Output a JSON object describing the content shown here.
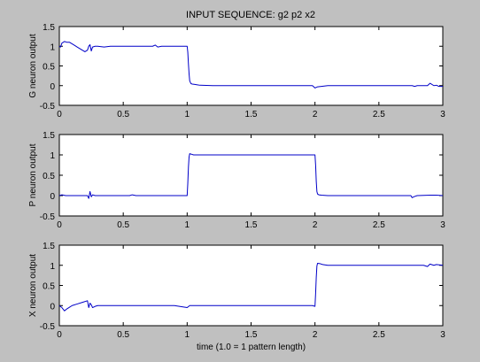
{
  "figure": {
    "title": "INPUT SEQUENCE: g2 p2 x2",
    "background": "#c0c0c0",
    "axes_background": "#ffffff",
    "line_color": "#0000c8"
  },
  "chart_data": [
    {
      "type": "line",
      "title": "INPUT SEQUENCE: g2 p2 x2",
      "xlabel": "",
      "ylabel": "G neuron output",
      "xlim": [
        0,
        3
      ],
      "ylim": [
        -0.5,
        1.5
      ],
      "xticks": [
        "0",
        "0.5",
        "1",
        "1.5",
        "2",
        "2.5",
        "3"
      ],
      "yticks": [
        "-0.5",
        "0",
        "0.5",
        "1",
        "1.5"
      ],
      "grid": false,
      "series": [
        {
          "x": [
            0,
            0.01,
            0.02,
            0.04,
            0.06,
            0.08,
            0.1,
            0.12,
            0.14,
            0.16,
            0.18,
            0.2,
            0.22,
            0.23,
            0.24,
            0.25,
            0.26,
            0.28,
            0.3,
            0.35,
            0.4,
            0.5,
            0.6,
            0.7,
            0.73,
            0.75,
            0.77,
            0.8,
            0.9,
            1.0,
            1.005,
            1.01,
            1.015,
            1.02,
            1.03,
            1.04,
            1.06,
            1.08,
            1.1,
            1.2,
            1.4,
            1.6,
            1.8,
            1.95,
            1.98,
            2.0,
            2.02,
            2.05,
            2.1,
            2.2,
            2.4,
            2.6,
            2.75,
            2.76,
            2.78,
            2.8,
            2.85,
            2.88,
            2.9,
            2.93,
            2.95,
            2.97,
            3.0
          ],
          "y": [
            1.0,
            0.98,
            1.08,
            1.12,
            1.1,
            1.1,
            1.06,
            1.02,
            0.98,
            0.94,
            0.9,
            0.86,
            0.9,
            1.0,
            1.04,
            0.88,
            0.98,
            1.0,
            1.0,
            0.98,
            1.0,
            1.0,
            1.0,
            1.0,
            1.0,
            1.03,
            0.98,
            1.0,
            1.0,
            1.0,
            0.85,
            0.55,
            0.3,
            0.12,
            0.05,
            0.04,
            0.03,
            0.02,
            0.01,
            0.0,
            0.0,
            0.0,
            0.0,
            0.0,
            0.0,
            -0.06,
            -0.03,
            -0.02,
            0.0,
            0.0,
            0.0,
            0.0,
            0.0,
            0.0,
            -0.02,
            0.0,
            0.0,
            0.0,
            0.06,
            0.0,
            0.01,
            -0.02,
            -0.02
          ]
        }
      ]
    },
    {
      "type": "line",
      "xlabel": "",
      "ylabel": "P neuron output",
      "xlim": [
        0,
        3
      ],
      "ylim": [
        -0.5,
        1.5
      ],
      "xticks": [
        "0",
        "0.5",
        "1",
        "1.5",
        "2",
        "2.5",
        "3"
      ],
      "yticks": [
        "-0.5",
        "0",
        "0.5",
        "1",
        "1.5"
      ],
      "grid": false,
      "series": [
        {
          "x": [
            0,
            0.02,
            0.05,
            0.1,
            0.15,
            0.2,
            0.22,
            0.23,
            0.24,
            0.25,
            0.26,
            0.28,
            0.3,
            0.4,
            0.5,
            0.55,
            0.57,
            0.6,
            0.7,
            0.8,
            0.9,
            1.0,
            1.005,
            1.01,
            1.015,
            1.02,
            1.03,
            1.05,
            1.1,
            1.2,
            1.4,
            1.6,
            1.8,
            1.95,
            1.98,
            2.0,
            2.005,
            2.01,
            2.015,
            2.02,
            2.03,
            2.05,
            2.1,
            2.2,
            2.4,
            2.6,
            2.75,
            2.76,
            2.78,
            2.8,
            2.9,
            2.95,
            3.0
          ],
          "y": [
            0.0,
            0.02,
            0.0,
            0.0,
            0.0,
            0.0,
            0.0,
            -0.07,
            0.1,
            -0.03,
            0.02,
            0.0,
            0.0,
            0.0,
            0.0,
            0.0,
            0.02,
            0.0,
            0.0,
            0.0,
            0.0,
            0.0,
            0.3,
            0.7,
            0.95,
            1.03,
            1.02,
            1.0,
            1.0,
            1.0,
            1.0,
            1.0,
            1.0,
            1.0,
            1.0,
            1.0,
            0.75,
            0.35,
            0.1,
            0.04,
            0.02,
            0.01,
            0.0,
            0.0,
            0.0,
            0.0,
            0.0,
            -0.05,
            -0.02,
            0.0,
            0.01,
            0.01,
            0.0
          ]
        }
      ]
    },
    {
      "type": "line",
      "xlabel": "time (1.0 = 1 pattern length)",
      "ylabel": "X neuron output",
      "xlim": [
        0,
        3
      ],
      "ylim": [
        -0.5,
        1.5
      ],
      "xticks": [
        "0",
        "0.5",
        "1",
        "1.5",
        "2",
        "2.5",
        "3"
      ],
      "yticks": [
        "-0.5",
        "0",
        "0.5",
        "1",
        "1.5"
      ],
      "grid": false,
      "series": [
        {
          "x": [
            0,
            0.02,
            0.04,
            0.06,
            0.08,
            0.1,
            0.14,
            0.18,
            0.22,
            0.23,
            0.24,
            0.25,
            0.26,
            0.28,
            0.3,
            0.4,
            0.5,
            0.6,
            0.7,
            0.75,
            0.8,
            0.9,
            1.0,
            1.02,
            1.05,
            1.1,
            1.2,
            1.4,
            1.6,
            1.8,
            1.95,
            1.98,
            2.0,
            2.005,
            2.01,
            2.015,
            2.02,
            2.04,
            2.06,
            2.1,
            2.2,
            2.4,
            2.6,
            2.75,
            2.8,
            2.85,
            2.88,
            2.9,
            2.93,
            2.95,
            3.0
          ],
          "y": [
            0.0,
            -0.05,
            -0.13,
            -0.08,
            -0.04,
            0.0,
            0.04,
            0.08,
            0.12,
            -0.05,
            0.06,
            0.02,
            -0.05,
            -0.02,
            0.0,
            0.0,
            0.0,
            0.0,
            0.0,
            0.0,
            0.0,
            0.0,
            -0.05,
            0.0,
            0.0,
            0.0,
            0.0,
            0.0,
            0.0,
            0.0,
            0.0,
            0.0,
            -0.02,
            0.3,
            0.7,
            0.98,
            1.05,
            1.04,
            1.02,
            1.0,
            1.0,
            1.0,
            1.0,
            1.0,
            1.0,
            1.0,
            0.97,
            1.03,
            1.0,
            1.02,
            1.0
          ]
        }
      ]
    }
  ]
}
